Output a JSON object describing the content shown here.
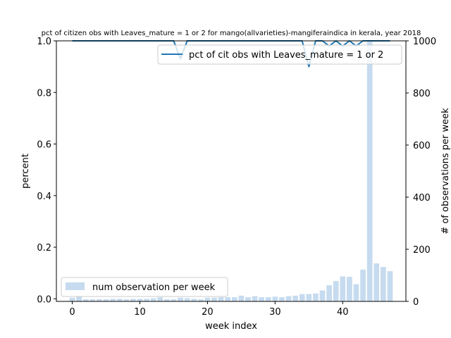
{
  "chart_data": {
    "type": "bar+line",
    "title": "pct of citizen obs with Leaves_mature = 1 or 2 for mango(allvarieties)-mangiferaindica in kerala, year 2018",
    "xlabel": "week index",
    "ylabel_left": "percent",
    "ylabel_right": "# of observations per week",
    "xlim": [
      -2.35,
      49.35
    ],
    "ylim_left": [
      -0.01,
      1.0
    ],
    "ylim_right": [
      0,
      1000
    ],
    "xticks": [
      0,
      10,
      20,
      30,
      40
    ],
    "yticks_left": [
      "0.0",
      "0.2",
      "0.4",
      "0.6",
      "0.8",
      "1.0"
    ],
    "yticks_right": [
      "0",
      "200",
      "400",
      "600",
      "800",
      "1000"
    ],
    "bar_color": "#c6dbef",
    "line_color": "#1f77b4",
    "legend_line": "pct of cit obs with Leaves_mature = 1 or 2",
    "legend_line_position": "upper right",
    "legend_bar": "num observation per week",
    "legend_bar_position": "lower left",
    "weeks": [
      0,
      1,
      2,
      3,
      4,
      5,
      6,
      7,
      8,
      9,
      10,
      11,
      12,
      13,
      14,
      15,
      16,
      17,
      18,
      19,
      20,
      21,
      22,
      23,
      24,
      25,
      26,
      27,
      28,
      29,
      30,
      31,
      32,
      33,
      34,
      35,
      36,
      37,
      38,
      39,
      40,
      41,
      42,
      43,
      44,
      45,
      46,
      47
    ],
    "bar_values": [
      14,
      18,
      8,
      8,
      8,
      8,
      10,
      10,
      8,
      10,
      10,
      10,
      12,
      16,
      8,
      8,
      14,
      12,
      10,
      8,
      14,
      14,
      16,
      16,
      16,
      22,
      16,
      20,
      16,
      16,
      18,
      16,
      20,
      22,
      28,
      28,
      30,
      42,
      62,
      78,
      96,
      94,
      66,
      122,
      1000,
      146,
      132,
      116
    ],
    "line_values": [
      1,
      1,
      1,
      1,
      1,
      1,
      1,
      1,
      1,
      1,
      1,
      1,
      1,
      1,
      1,
      1,
      0.93,
      1,
      1,
      1,
      1,
      1,
      1,
      1,
      1,
      1,
      1,
      1,
      1,
      1,
      1,
      1,
      1,
      1,
      1,
      0.9,
      1,
      1,
      0.98,
      1,
      0.98,
      1,
      0.98,
      1,
      1,
      1,
      1,
      1
    ]
  }
}
